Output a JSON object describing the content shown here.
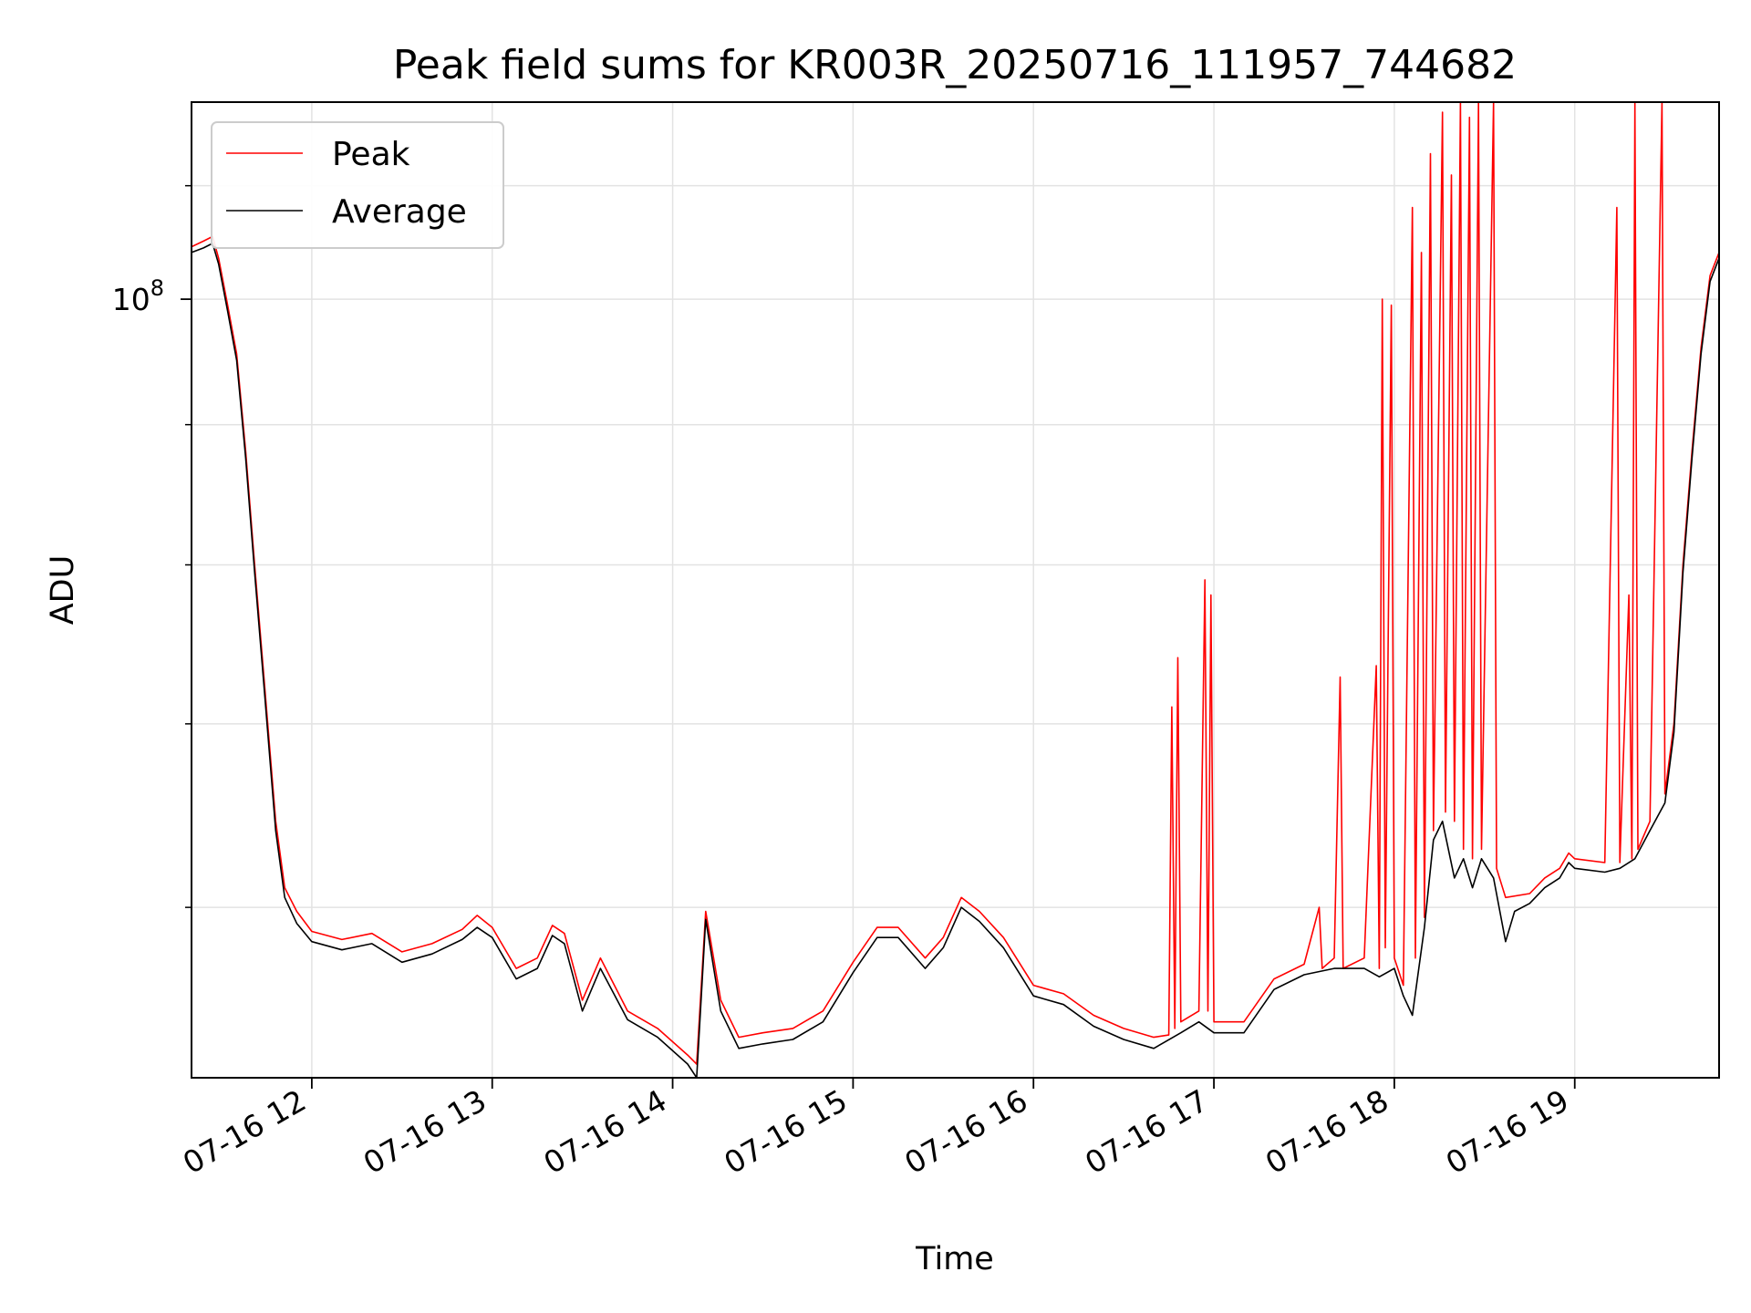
{
  "chart_data": {
    "type": "line",
    "title": "Peak field sums for KR003R_20250716_111957_744682",
    "xlabel": "Time",
    "ylabel": "ADU",
    "x_scale": "time",
    "y_scale": "log",
    "xlim": [
      "2025-07-16T11:20:00",
      "2025-07-16T19:48:00"
    ],
    "ylim": [
      52000000,
      118000000
    ],
    "x_ticks": [
      {
        "value": "2025-07-16T12:00:00",
        "label": "07-16 12"
      },
      {
        "value": "2025-07-16T13:00:00",
        "label": "07-16 13"
      },
      {
        "value": "2025-07-16T14:00:00",
        "label": "07-16 14"
      },
      {
        "value": "2025-07-16T15:00:00",
        "label": "07-16 15"
      },
      {
        "value": "2025-07-16T16:00:00",
        "label": "07-16 16"
      },
      {
        "value": "2025-07-16T17:00:00",
        "label": "07-16 17"
      },
      {
        "value": "2025-07-16T18:00:00",
        "label": "07-16 18"
      },
      {
        "value": "2025-07-16T19:00:00",
        "label": "07-16 19"
      }
    ],
    "y_major_ticks": [
      {
        "value": 100000000,
        "base": "10",
        "exp": "8"
      }
    ],
    "y_minor_ticks": [
      60000000,
      70000000,
      80000000,
      90000000
    ],
    "grid": true,
    "legend": "upper-left",
    "series": [
      {
        "name": "Peak",
        "color": "#ff0000",
        "points": [
          [
            "2025-07-16T11:20:00",
            104500000
          ],
          [
            "2025-07-16T11:24:00",
            105000000
          ],
          [
            "2025-07-16T11:27:00",
            105400000
          ],
          [
            "2025-07-16T11:29:00",
            103500000
          ],
          [
            "2025-07-16T11:32:00",
            99500000
          ],
          [
            "2025-07-16T11:35:00",
            95500000
          ],
          [
            "2025-07-16T11:38:00",
            88000000
          ],
          [
            "2025-07-16T11:41:00",
            80000000
          ],
          [
            "2025-07-16T11:44:00",
            73000000
          ],
          [
            "2025-07-16T11:48:00",
            64500000
          ],
          [
            "2025-07-16T11:51:00",
            61000000
          ],
          [
            "2025-07-16T11:55:00",
            59800000
          ],
          [
            "2025-07-16T12:00:00",
            58800000
          ],
          [
            "2025-07-16T12:10:00",
            58400000
          ],
          [
            "2025-07-16T12:20:00",
            58700000
          ],
          [
            "2025-07-16T12:30:00",
            57800000
          ],
          [
            "2025-07-16T12:40:00",
            58200000
          ],
          [
            "2025-07-16T12:50:00",
            58900000
          ],
          [
            "2025-07-16T12:55:00",
            59600000
          ],
          [
            "2025-07-16T13:00:00",
            59000000
          ],
          [
            "2025-07-16T13:08:00",
            57000000
          ],
          [
            "2025-07-16T13:15:00",
            57500000
          ],
          [
            "2025-07-16T13:20:00",
            59100000
          ],
          [
            "2025-07-16T13:24:00",
            58700000
          ],
          [
            "2025-07-16T13:30:00",
            55500000
          ],
          [
            "2025-07-16T13:36:00",
            57500000
          ],
          [
            "2025-07-16T13:45:00",
            55000000
          ],
          [
            "2025-07-16T13:55:00",
            54200000
          ],
          [
            "2025-07-16T14:05:00",
            53000000
          ],
          [
            "2025-07-16T14:08:00",
            52600000
          ],
          [
            "2025-07-16T14:11:00",
            59800000
          ],
          [
            "2025-07-16T14:16:00",
            55500000
          ],
          [
            "2025-07-16T14:22:00",
            53800000
          ],
          [
            "2025-07-16T14:30:00",
            54000000
          ],
          [
            "2025-07-16T14:40:00",
            54200000
          ],
          [
            "2025-07-16T14:50:00",
            55000000
          ],
          [
            "2025-07-16T15:00:00",
            57300000
          ],
          [
            "2025-07-16T15:08:00",
            59000000
          ],
          [
            "2025-07-16T15:15:00",
            59000000
          ],
          [
            "2025-07-16T15:24:00",
            57500000
          ],
          [
            "2025-07-16T15:30:00",
            58500000
          ],
          [
            "2025-07-16T15:36:00",
            60500000
          ],
          [
            "2025-07-16T15:42:00",
            59800000
          ],
          [
            "2025-07-16T15:50:00",
            58500000
          ],
          [
            "2025-07-16T16:00:00",
            56200000
          ],
          [
            "2025-07-16T16:10:00",
            55800000
          ],
          [
            "2025-07-16T16:20:00",
            54800000
          ],
          [
            "2025-07-16T16:30:00",
            54200000
          ],
          [
            "2025-07-16T16:40:00",
            53800000
          ],
          [
            "2025-07-16T16:45:00",
            53900000
          ],
          [
            "2025-07-16T16:46:00",
            71000000
          ],
          [
            "2025-07-16T16:47:00",
            54200000
          ],
          [
            "2025-07-16T16:48:00",
            74000000
          ],
          [
            "2025-07-16T16:49:00",
            54500000
          ],
          [
            "2025-07-16T16:55:00",
            55000000
          ],
          [
            "2025-07-16T16:57:00",
            79000000
          ],
          [
            "2025-07-16T16:58:00",
            55000000
          ],
          [
            "2025-07-16T16:59:00",
            78000000
          ],
          [
            "2025-07-16T17:00:00",
            54500000
          ],
          [
            "2025-07-16T17:10:00",
            54500000
          ],
          [
            "2025-07-16T17:20:00",
            56500000
          ],
          [
            "2025-07-16T17:30:00",
            57200000
          ],
          [
            "2025-07-16T17:35:00",
            60000000
          ],
          [
            "2025-07-16T17:36:00",
            57000000
          ],
          [
            "2025-07-16T17:40:00",
            57500000
          ],
          [
            "2025-07-16T17:42:00",
            72800000
          ],
          [
            "2025-07-16T17:43:00",
            57000000
          ],
          [
            "2025-07-16T17:50:00",
            57500000
          ],
          [
            "2025-07-16T17:54:00",
            73500000
          ],
          [
            "2025-07-16T17:55:00",
            57000000
          ],
          [
            "2025-07-16T17:56:00",
            100000000
          ],
          [
            "2025-07-16T17:57:00",
            58000000
          ],
          [
            "2025-07-16T17:59:00",
            99500000
          ],
          [
            "2025-07-16T18:00:00",
            57500000
          ],
          [
            "2025-07-16T18:03:00",
            56200000
          ],
          [
            "2025-07-16T18:06:00",
            108000000
          ],
          [
            "2025-07-16T18:07:00",
            57500000
          ],
          [
            "2025-07-16T18:09:00",
            104000000
          ],
          [
            "2025-07-16T18:10:00",
            59500000
          ],
          [
            "2025-07-16T18:12:00",
            113000000
          ],
          [
            "2025-07-16T18:13:00",
            64000000
          ],
          [
            "2025-07-16T18:16:00",
            117000000
          ],
          [
            "2025-07-16T18:17:00",
            65000000
          ],
          [
            "2025-07-16T18:19:00",
            111000000
          ],
          [
            "2025-07-16T18:20:00",
            64500000
          ],
          [
            "2025-07-16T18:22:00",
            118000000
          ],
          [
            "2025-07-16T18:23:00",
            63000000
          ],
          [
            "2025-07-16T18:25:00",
            116500000
          ],
          [
            "2025-07-16T18:26:00",
            62500000
          ],
          [
            "2025-07-16T18:28:00",
            118000000
          ],
          [
            "2025-07-16T18:29:00",
            63000000
          ],
          [
            "2025-07-16T18:33:00",
            118000000
          ],
          [
            "2025-07-16T18:34:00",
            62000000
          ],
          [
            "2025-07-16T18:37:00",
            60500000
          ],
          [
            "2025-07-16T18:45:00",
            60700000
          ],
          [
            "2025-07-16T18:50:00",
            61500000
          ],
          [
            "2025-07-16T18:55:00",
            62000000
          ],
          [
            "2025-07-16T18:58:00",
            62800000
          ],
          [
            "2025-07-16T19:00:00",
            62500000
          ],
          [
            "2025-07-16T19:10:00",
            62300000
          ],
          [
            "2025-07-16T19:14:00",
            108000000
          ],
          [
            "2025-07-16T19:15:00",
            62300000
          ],
          [
            "2025-07-16T19:18:00",
            78000000
          ],
          [
            "2025-07-16T19:19:00",
            62500000
          ],
          [
            "2025-07-16T19:20:00",
            118000000
          ],
          [
            "2025-07-16T19:21:00",
            63000000
          ],
          [
            "2025-07-16T19:25:00",
            64500000
          ],
          [
            "2025-07-16T19:29:00",
            118000000
          ],
          [
            "2025-07-16T19:30:00",
            66000000
          ],
          [
            "2025-07-16T19:33:00",
            70000000
          ],
          [
            "2025-07-16T19:36:00",
            80000000
          ],
          [
            "2025-07-16T19:39:00",
            88000000
          ],
          [
            "2025-07-16T19:42:00",
            96000000
          ],
          [
            "2025-07-16T19:45:00",
            102000000
          ],
          [
            "2025-07-16T19:48:00",
            104000000
          ]
        ]
      },
      {
        "name": "Average",
        "color": "#000000",
        "points": [
          [
            "2025-07-16T11:20:00",
            104000000
          ],
          [
            "2025-07-16T11:24:00",
            104400000
          ],
          [
            "2025-07-16T11:27:00",
            104800000
          ],
          [
            "2025-07-16T11:29:00",
            103000000
          ],
          [
            "2025-07-16T11:32:00",
            99000000
          ],
          [
            "2025-07-16T11:35:00",
            95000000
          ],
          [
            "2025-07-16T11:38:00",
            87500000
          ],
          [
            "2025-07-16T11:41:00",
            79500000
          ],
          [
            "2025-07-16T11:44:00",
            72500000
          ],
          [
            "2025-07-16T11:48:00",
            64000000
          ],
          [
            "2025-07-16T11:51:00",
            60500000
          ],
          [
            "2025-07-16T11:55:00",
            59200000
          ],
          [
            "2025-07-16T12:00:00",
            58300000
          ],
          [
            "2025-07-16T12:10:00",
            57900000
          ],
          [
            "2025-07-16T12:20:00",
            58200000
          ],
          [
            "2025-07-16T12:30:00",
            57300000
          ],
          [
            "2025-07-16T12:40:00",
            57700000
          ],
          [
            "2025-07-16T12:50:00",
            58400000
          ],
          [
            "2025-07-16T12:55:00",
            59000000
          ],
          [
            "2025-07-16T13:00:00",
            58500000
          ],
          [
            "2025-07-16T13:08:00",
            56500000
          ],
          [
            "2025-07-16T13:15:00",
            57000000
          ],
          [
            "2025-07-16T13:20:00",
            58600000
          ],
          [
            "2025-07-16T13:24:00",
            58200000
          ],
          [
            "2025-07-16T13:30:00",
            55000000
          ],
          [
            "2025-07-16T13:36:00",
            57000000
          ],
          [
            "2025-07-16T13:45:00",
            54600000
          ],
          [
            "2025-07-16T13:55:00",
            53800000
          ],
          [
            "2025-07-16T14:05:00",
            52600000
          ],
          [
            "2025-07-16T14:08:00",
            52000000
          ],
          [
            "2025-07-16T14:11:00",
            59400000
          ],
          [
            "2025-07-16T14:16:00",
            55000000
          ],
          [
            "2025-07-16T14:22:00",
            53300000
          ],
          [
            "2025-07-16T14:30:00",
            53500000
          ],
          [
            "2025-07-16T14:40:00",
            53700000
          ],
          [
            "2025-07-16T14:50:00",
            54500000
          ],
          [
            "2025-07-16T15:00:00",
            56800000
          ],
          [
            "2025-07-16T15:08:00",
            58500000
          ],
          [
            "2025-07-16T15:15:00",
            58500000
          ],
          [
            "2025-07-16T15:24:00",
            57000000
          ],
          [
            "2025-07-16T15:30:00",
            58000000
          ],
          [
            "2025-07-16T15:36:00",
            60000000
          ],
          [
            "2025-07-16T15:42:00",
            59300000
          ],
          [
            "2025-07-16T15:50:00",
            58000000
          ],
          [
            "2025-07-16T16:00:00",
            55700000
          ],
          [
            "2025-07-16T16:10:00",
            55300000
          ],
          [
            "2025-07-16T16:20:00",
            54300000
          ],
          [
            "2025-07-16T16:30:00",
            53700000
          ],
          [
            "2025-07-16T16:40:00",
            53300000
          ],
          [
            "2025-07-16T16:49:00",
            54000000
          ],
          [
            "2025-07-16T16:55:00",
            54500000
          ],
          [
            "2025-07-16T17:00:00",
            54000000
          ],
          [
            "2025-07-16T17:10:00",
            54000000
          ],
          [
            "2025-07-16T17:20:00",
            56000000
          ],
          [
            "2025-07-16T17:30:00",
            56700000
          ],
          [
            "2025-07-16T17:40:00",
            57000000
          ],
          [
            "2025-07-16T17:50:00",
            57000000
          ],
          [
            "2025-07-16T17:55:00",
            56600000
          ],
          [
            "2025-07-16T18:00:00",
            57000000
          ],
          [
            "2025-07-16T18:03:00",
            55700000
          ],
          [
            "2025-07-16T18:06:00",
            54800000
          ],
          [
            "2025-07-16T18:10:00",
            59000000
          ],
          [
            "2025-07-16T18:13:00",
            63500000
          ],
          [
            "2025-07-16T18:16:00",
            64500000
          ],
          [
            "2025-07-16T18:20:00",
            61500000
          ],
          [
            "2025-07-16T18:23:00",
            62500000
          ],
          [
            "2025-07-16T18:26:00",
            61000000
          ],
          [
            "2025-07-16T18:29:00",
            62500000
          ],
          [
            "2025-07-16T18:33:00",
            61500000
          ],
          [
            "2025-07-16T18:37:00",
            58300000
          ],
          [
            "2025-07-16T18:40:00",
            59800000
          ],
          [
            "2025-07-16T18:45:00",
            60200000
          ],
          [
            "2025-07-16T18:50:00",
            61000000
          ],
          [
            "2025-07-16T18:55:00",
            61500000
          ],
          [
            "2025-07-16T18:58:00",
            62300000
          ],
          [
            "2025-07-16T19:00:00",
            62000000
          ],
          [
            "2025-07-16T19:10:00",
            61800000
          ],
          [
            "2025-07-16T19:15:00",
            62000000
          ],
          [
            "2025-07-16T19:20:00",
            62500000
          ],
          [
            "2025-07-16T19:25:00",
            64000000
          ],
          [
            "2025-07-16T19:30:00",
            65500000
          ],
          [
            "2025-07-16T19:33:00",
            69500000
          ],
          [
            "2025-07-16T19:36:00",
            79500000
          ],
          [
            "2025-07-16T19:39:00",
            87500000
          ],
          [
            "2025-07-16T19:42:00",
            95500000
          ],
          [
            "2025-07-16T19:45:00",
            101500000
          ],
          [
            "2025-07-16T19:48:00",
            103500000
          ]
        ]
      }
    ]
  }
}
